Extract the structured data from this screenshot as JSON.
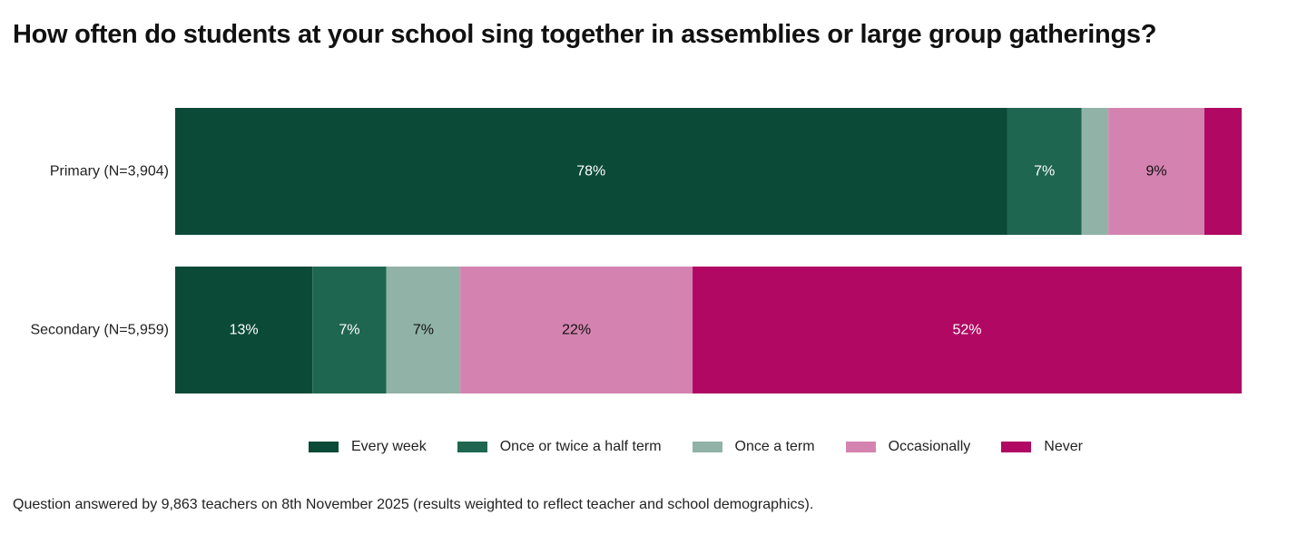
{
  "title": "How often do students at your school sing together in assemblies or large group gatherings?",
  "footnote": "Question answered by 9,863 teachers on 8th November 2025 (results weighted to reflect teacher and school demographics).",
  "chart_data": {
    "type": "bar",
    "orientation": "horizontal",
    "stacked": true,
    "percent": true,
    "categories": [
      "Primary (N=3,904)",
      "Secondary (N=5,959)"
    ],
    "series": [
      {
        "name": "Every week",
        "color": "#0b4a36",
        "label_color": "#ffffff",
        "values": [
          78,
          13
        ],
        "labels": [
          "78%",
          "13%"
        ]
      },
      {
        "name": "Once or twice a half term",
        "color": "#1f6650",
        "label_color": "#ffffff",
        "values": [
          7,
          7
        ],
        "labels": [
          "7%",
          "7%"
        ]
      },
      {
        "name": "Once a term",
        "color": "#91b2a6",
        "label_color": "#111111",
        "values": [
          2.5,
          7
        ],
        "labels": [
          "",
          "7%"
        ]
      },
      {
        "name": "Occasionally",
        "color": "#d483b0",
        "label_color": "#111111",
        "values": [
          9,
          22
        ],
        "labels": [
          "9%",
          "22%"
        ]
      },
      {
        "name": "Never",
        "color": "#b00863",
        "label_color": "#ffffff",
        "values": [
          3.5,
          52
        ],
        "labels": [
          "",
          "52%"
        ]
      }
    ],
    "xlim": [
      0,
      100
    ],
    "grid": false,
    "legend_position": "bottom"
  }
}
